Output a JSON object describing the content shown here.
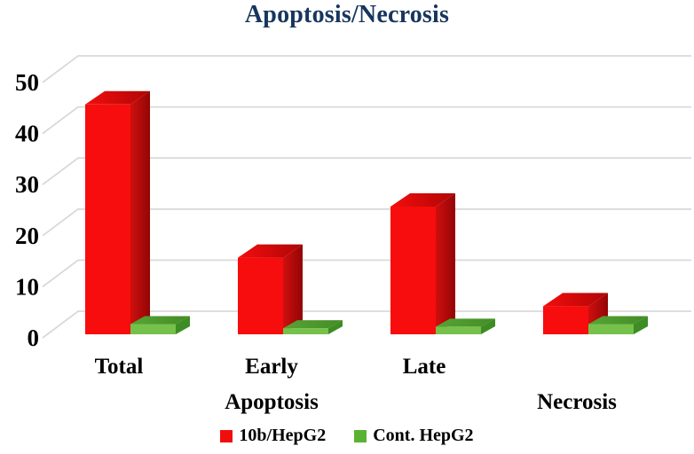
{
  "title": "Apoptosis/Necrosis",
  "chart_data": {
    "type": "bar",
    "style": "3d-clustered-column",
    "title": "Apoptosis/Necrosis",
    "categories": [
      "Total",
      "Early",
      "Late",
      ""
    ],
    "group_labels": [
      {
        "label": "Apoptosis",
        "slot": 1
      },
      {
        "label": "Necrosis",
        "slot": 3
      }
    ],
    "series": [
      {
        "name": "10b/HepG2",
        "values": [
          45,
          15,
          25,
          5.5
        ]
      },
      {
        "name": "Cont. HepG2",
        "values": [
          2,
          1.2,
          1.5,
          2
        ]
      }
    ],
    "y_ticks": [
      0,
      10,
      20,
      30,
      40,
      50
    ],
    "ylim": [
      0,
      50
    ],
    "grid": true,
    "legend_position": "bottom"
  },
  "colors": {
    "title": "#17365d",
    "axis_text": "#000000",
    "gridline": "#d9d9d9",
    "red_front": "#f70d0d",
    "red_top_light": "#f30d0d",
    "red_top_dark": "#ae0606",
    "red_side_light": "#cf0f0f",
    "red_side_dark": "#930505",
    "green_front": "#76c14b",
    "green_top_light": "#57a434",
    "green_top_dark": "#448c27",
    "green_side": "#3d8c24",
    "legend_red": "#f20d0d",
    "legend_green": "#5ab233"
  }
}
